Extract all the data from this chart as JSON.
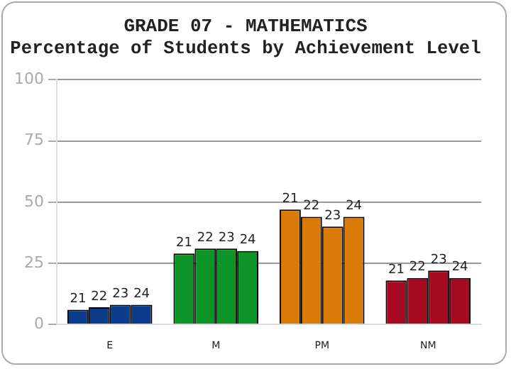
{
  "chart_data": {
    "type": "bar",
    "title": "GRADE 07 - MATHEMATICS",
    "subtitle": "Percentage of Students by Achievement Level",
    "categories": [
      "E",
      "M",
      "PM",
      "NM"
    ],
    "series": [
      {
        "name": "21",
        "colors": [
          "#0b3d8c",
          "#0d9426",
          "#d97b06",
          "#a50a20"
        ],
        "values": [
          6,
          29,
          47,
          18
        ]
      },
      {
        "name": "22",
        "colors": [
          "#0b3d8c",
          "#0d9426",
          "#d97b06",
          "#a50a20"
        ],
        "values": [
          7,
          31,
          44,
          19
        ]
      },
      {
        "name": "23",
        "colors": [
          "#0b3d8c",
          "#0d9426",
          "#d97b06",
          "#a50a20"
        ],
        "values": [
          8,
          31,
          40,
          22
        ]
      },
      {
        "name": "24",
        "colors": [
          "#0b3d8c",
          "#0d9426",
          "#d97b06",
          "#a50a20"
        ],
        "values": [
          8,
          30,
          44,
          19
        ]
      }
    ],
    "ylim": [
      0,
      100
    ],
    "yticks": [
      0,
      25,
      50,
      75,
      100
    ],
    "grid": "y",
    "legend": false
  }
}
